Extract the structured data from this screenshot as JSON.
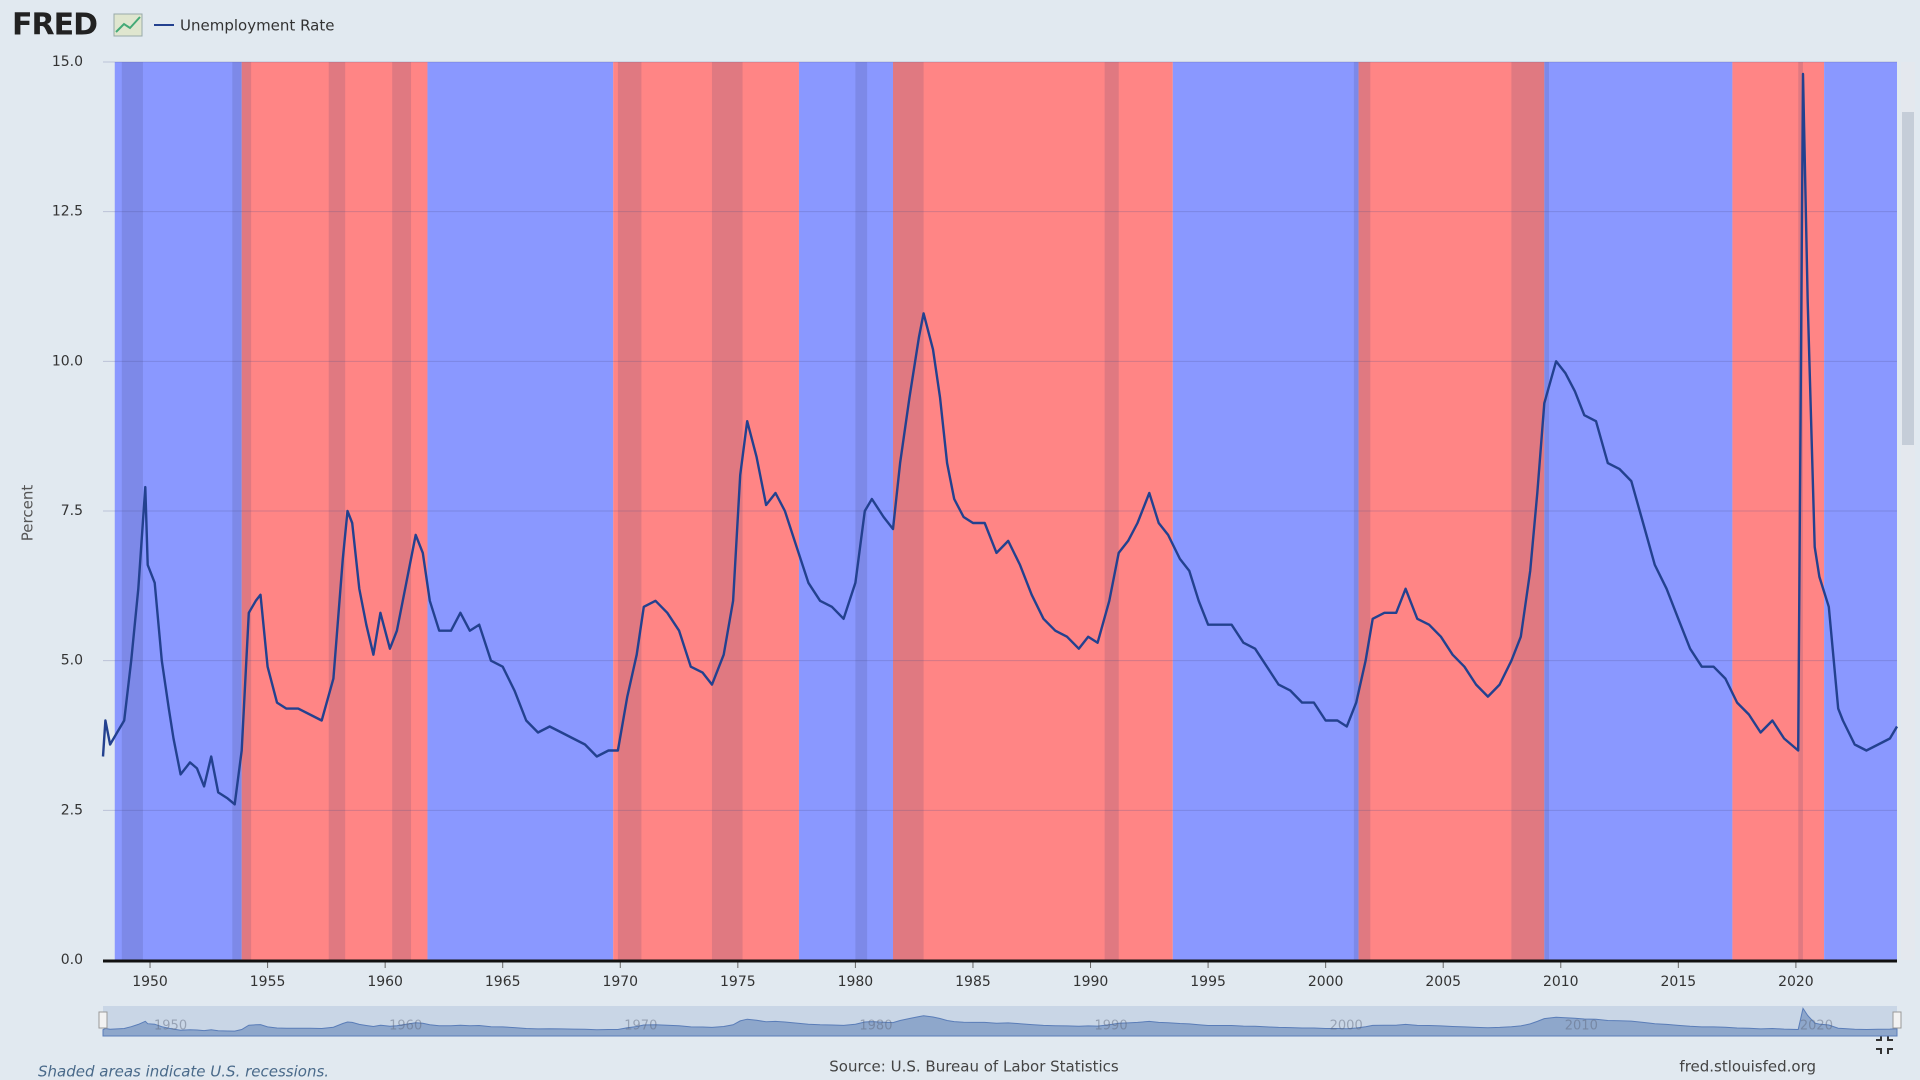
{
  "chart_data": {
    "type": "line",
    "logo": "FRED",
    "ylabel": "Percent",
    "source": "Source: U.S. Bureau of Labor Statistics",
    "site": "fred.stlouisfed.org",
    "note": "Shaded areas indicate U.S. recessions.",
    "xlim": [
      1948,
      2024.3
    ],
    "xticks": [
      1950,
      1955,
      1960,
      1965,
      1970,
      1975,
      1980,
      1985,
      1990,
      1995,
      2000,
      2005,
      2010,
      2015,
      2020
    ],
    "ylim": [
      0,
      15
    ],
    "yticks": [
      {
        "value": 0,
        "label": "0.0"
      },
      2.5,
      {
        "value": 5,
        "label": "5.0"
      },
      7.5,
      {
        "value": 10,
        "label": "10.0"
      },
      12.5,
      {
        "value": 15,
        "label": "15.0"
      }
    ],
    "grid": true,
    "navigator_ticks": [
      1950,
      1960,
      1970,
      1980,
      1990,
      2000,
      2010,
      2020
    ],
    "party_shading": [
      {
        "start": 1948.5,
        "end": 1953.9,
        "color": "#8a98ff"
      },
      {
        "start": 1953.9,
        "end": 1961.8,
        "color": "#ff8585"
      },
      {
        "start": 1961.8,
        "end": 1969.7,
        "color": "#8a98ff"
      },
      {
        "start": 1969.7,
        "end": 1977.6,
        "color": "#ff8585"
      },
      {
        "start": 1977.6,
        "end": 1981.6,
        "color": "#8a98ff"
      },
      {
        "start": 1981.6,
        "end": 1993.5,
        "color": "#ff8585"
      },
      {
        "start": 1993.5,
        "end": 2001.4,
        "color": "#8a98ff"
      },
      {
        "start": 2001.4,
        "end": 2009.3,
        "color": "#ff8585"
      },
      {
        "start": 2009.3,
        "end": 2017.3,
        "color": "#8a98ff"
      },
      {
        "start": 2017.3,
        "end": 2021.2,
        "color": "#ff8585"
      },
      {
        "start": 2021.2,
        "end": 2024.3,
        "color": "#8a98ff"
      }
    ],
    "recessions": [
      {
        "start": 1948.8,
        "end": 1949.7
      },
      {
        "start": 1953.5,
        "end": 1954.3
      },
      {
        "start": 1957.6,
        "end": 1958.3
      },
      {
        "start": 1960.3,
        "end": 1961.1
      },
      {
        "start": 1969.9,
        "end": 1970.9
      },
      {
        "start": 1973.9,
        "end": 1975.2
      },
      {
        "start": 1980.0,
        "end": 1980.5
      },
      {
        "start": 1981.6,
        "end": 1982.9
      },
      {
        "start": 1990.6,
        "end": 1991.2
      },
      {
        "start": 2001.2,
        "end": 2001.9
      },
      {
        "start": 2007.9,
        "end": 2009.5
      },
      {
        "start": 2020.1,
        "end": 2020.3
      }
    ],
    "recession_color": "rgba(60,60,110,0.16)",
    "series": [
      {
        "name": "Unemployment Rate",
        "color": "#23418f",
        "x": [
          1948.0,
          1948.1,
          1948.3,
          1948.6,
          1948.9,
          1949.2,
          1949.5,
          1949.8,
          1949.9,
          1950.2,
          1950.5,
          1950.8,
          1951.0,
          1951.3,
          1951.7,
          1952.0,
          1952.3,
          1952.6,
          1952.9,
          1953.3,
          1953.6,
          1953.9,
          1954.2,
          1954.5,
          1954.7,
          1955.0,
          1955.4,
          1955.8,
          1956.3,
          1956.8,
          1957.3,
          1957.8,
          1958.2,
          1958.4,
          1958.6,
          1958.9,
          1959.2,
          1959.5,
          1959.8,
          1960.2,
          1960.5,
          1960.9,
          1961.3,
          1961.6,
          1961.9,
          1962.3,
          1962.8,
          1963.2,
          1963.6,
          1964.0,
          1964.5,
          1965.0,
          1965.5,
          1966.0,
          1966.5,
          1967.0,
          1967.5,
          1968.0,
          1968.5,
          1969.0,
          1969.5,
          1969.9,
          1970.3,
          1970.7,
          1971.0,
          1971.5,
          1972.0,
          1972.5,
          1973.0,
          1973.5,
          1973.9,
          1974.4,
          1974.8,
          1975.1,
          1975.4,
          1975.8,
          1976.2,
          1976.6,
          1977.0,
          1977.5,
          1978.0,
          1978.5,
          1979.0,
          1979.5,
          1980.0,
          1980.4,
          1980.7,
          1981.2,
          1981.6,
          1981.9,
          1982.3,
          1982.7,
          1982.9,
          1983.3,
          1983.6,
          1983.9,
          1984.2,
          1984.6,
          1985.0,
          1985.5,
          1986.0,
          1986.5,
          1987.0,
          1987.5,
          1988.0,
          1988.5,
          1989.0,
          1989.5,
          1989.9,
          1990.3,
          1990.8,
          1991.2,
          1991.6,
          1992.0,
          1992.5,
          1992.9,
          1993.3,
          1993.8,
          1994.2,
          1994.6,
          1995.0,
          1995.5,
          1996.0,
          1996.5,
          1997.0,
          1997.5,
          1998.0,
          1998.5,
          1999.0,
          1999.5,
          2000.0,
          2000.5,
          2000.9,
          2001.3,
          2001.7,
          2002.0,
          2002.5,
          2003.0,
          2003.4,
          2003.9,
          2004.4,
          2004.9,
          2005.4,
          2005.9,
          2006.4,
          2006.9,
          2007.4,
          2007.9,
          2008.3,
          2008.7,
          2009.0,
          2009.3,
          2009.8,
          2010.2,
          2010.6,
          2011.0,
          2011.5,
          2012.0,
          2012.5,
          2013.0,
          2013.5,
          2014.0,
          2014.5,
          2015.0,
          2015.5,
          2016.0,
          2016.5,
          2017.0,
          2017.5,
          2018.0,
          2018.5,
          2019.0,
          2019.5,
          2020.1,
          2020.3,
          2020.5,
          2020.8,
          2021.0,
          2021.4,
          2021.8,
          2022.0,
          2022.5,
          2023.0,
          2023.5,
          2024.0,
          2024.3
        ],
        "values": [
          3.4,
          4.0,
          3.6,
          3.8,
          4.0,
          5.0,
          6.2,
          7.9,
          6.6,
          6.3,
          5.0,
          4.2,
          3.7,
          3.1,
          3.3,
          3.2,
          2.9,
          3.4,
          2.8,
          2.7,
          2.6,
          3.5,
          5.8,
          6.0,
          6.1,
          4.9,
          4.3,
          4.2,
          4.2,
          4.1,
          4.0,
          4.7,
          6.7,
          7.5,
          7.3,
          6.2,
          5.6,
          5.1,
          5.8,
          5.2,
          5.5,
          6.3,
          7.1,
          6.8,
          6.0,
          5.5,
          5.5,
          5.8,
          5.5,
          5.6,
          5.0,
          4.9,
          4.5,
          4.0,
          3.8,
          3.9,
          3.8,
          3.7,
          3.6,
          3.4,
          3.5,
          3.5,
          4.4,
          5.1,
          5.9,
          6.0,
          5.8,
          5.5,
          4.9,
          4.8,
          4.6,
          5.1,
          6.0,
          8.1,
          9.0,
          8.4,
          7.6,
          7.8,
          7.5,
          6.9,
          6.3,
          6.0,
          5.9,
          5.7,
          6.3,
          7.5,
          7.7,
          7.4,
          7.2,
          8.3,
          9.4,
          10.4,
          10.8,
          10.2,
          9.4,
          8.3,
          7.7,
          7.4,
          7.3,
          7.3,
          6.8,
          7.0,
          6.6,
          6.1,
          5.7,
          5.5,
          5.4,
          5.2,
          5.4,
          5.3,
          6.0,
          6.8,
          7.0,
          7.3,
          7.8,
          7.3,
          7.1,
          6.7,
          6.5,
          6.0,
          5.6,
          5.6,
          5.6,
          5.3,
          5.2,
          4.9,
          4.6,
          4.5,
          4.3,
          4.3,
          4.0,
          4.0,
          3.9,
          4.3,
          5.0,
          5.7,
          5.8,
          5.8,
          6.2,
          5.7,
          5.6,
          5.4,
          5.1,
          4.9,
          4.6,
          4.4,
          4.6,
          5.0,
          5.4,
          6.5,
          7.8,
          9.3,
          10.0,
          9.8,
          9.5,
          9.1,
          9.0,
          8.3,
          8.2,
          8.0,
          7.3,
          6.6,
          6.2,
          5.7,
          5.2,
          4.9,
          4.9,
          4.7,
          4.3,
          4.1,
          3.8,
          4.0,
          3.7,
          3.5,
          14.8,
          11.0,
          6.9,
          6.4,
          5.9,
          4.2,
          4.0,
          3.6,
          3.5,
          3.6,
          3.7,
          3.9
        ]
      }
    ]
  }
}
